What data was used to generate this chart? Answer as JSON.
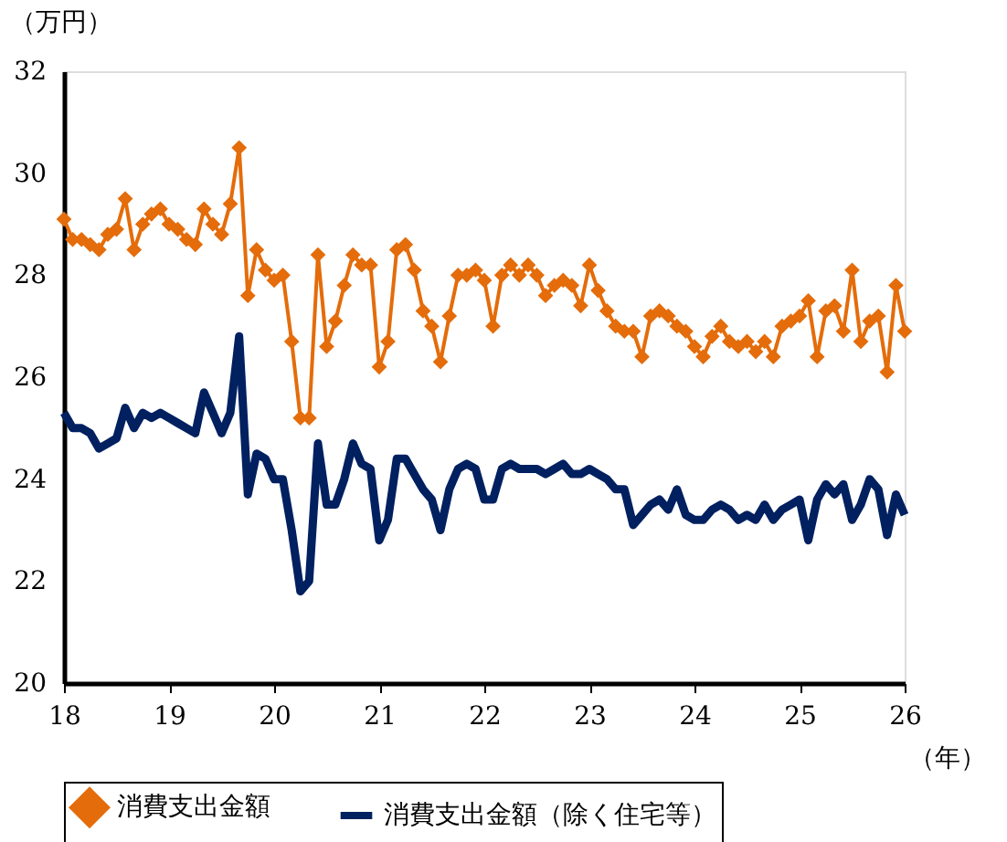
{
  "chart_data": {
    "type": "line",
    "xlabel": "（年）",
    "ylabel": "（万円）",
    "xlim": [
      18,
      26
    ],
    "xticks": [
      18,
      19,
      20,
      21,
      22,
      23,
      24,
      25,
      26
    ],
    "ylim": [
      20,
      32
    ],
    "yticks": [
      20,
      22,
      24,
      26,
      28,
      30,
      32
    ],
    "grid": false,
    "legend": "bottom",
    "x": [
      18,
      18.083,
      18.167,
      18.25,
      18.333,
      18.417,
      18.5,
      18.583,
      18.667,
      18.75,
      18.833,
      18.917,
      19,
      19.083,
      19.167,
      19.25,
      19.333,
      19.417,
      19.5,
      19.583,
      19.667,
      19.75,
      19.833,
      19.917,
      20,
      20.083,
      20.167,
      20.25,
      20.333,
      20.417,
      20.5,
      20.583,
      20.667,
      20.75,
      20.833,
      20.917,
      21,
      21.083,
      21.167,
      21.25,
      21.333,
      21.417,
      21.5,
      21.583,
      21.667,
      21.75,
      21.833,
      21.917,
      22,
      22.083,
      22.167,
      22.25,
      22.333,
      22.417,
      22.5,
      22.583,
      22.667,
      22.75,
      22.833,
      22.917,
      23,
      23.083,
      23.167,
      23.25,
      23.333,
      23.417,
      23.5,
      23.583,
      23.667,
      23.75,
      23.833,
      23.917,
      24,
      24.083,
      24.167,
      24.25,
      24.333,
      24.417,
      24.5,
      24.583,
      24.667,
      24.75,
      24.833,
      24.917,
      25,
      25.083,
      25.167,
      25.25,
      25.333,
      25.417,
      25.5,
      25.583,
      25.667,
      25.75,
      25.833,
      25.917,
      26
    ],
    "series": [
      {
        "name": "消費支出金額",
        "color": "#e46c0a",
        "marker": "diamond",
        "values": [
          29.1,
          28.7,
          28.7,
          28.6,
          28.5,
          28.8,
          28.9,
          29.5,
          28.5,
          29.0,
          29.2,
          29.3,
          29.0,
          28.9,
          28.7,
          28.6,
          29.3,
          29.0,
          28.8,
          29.4,
          30.5,
          27.6,
          28.5,
          28.1,
          27.9,
          28.0,
          26.7,
          25.2,
          25.2,
          28.4,
          26.6,
          27.1,
          27.8,
          28.4,
          28.2,
          28.2,
          26.2,
          26.7,
          28.5,
          28.6,
          28.1,
          27.3,
          27.0,
          26.3,
          27.2,
          28.0,
          28.0,
          28.1,
          27.9,
          27.0,
          28.0,
          28.2,
          28.0,
          28.2,
          28.0,
          27.6,
          27.8,
          27.9,
          27.8,
          27.4,
          28.2,
          27.7,
          27.3,
          27.0,
          26.9,
          26.9,
          26.4,
          27.2,
          27.3,
          27.2,
          27.0,
          26.9,
          26.6,
          26.4,
          26.8,
          27.0,
          26.7,
          26.6,
          26.7,
          26.5,
          26.7,
          26.4,
          27.0,
          27.1,
          27.2,
          27.5,
          26.4,
          27.3,
          27.4,
          26.9,
          28.1,
          26.7,
          27.1,
          27.2,
          26.1,
          27.8,
          26.9
        ]
      },
      {
        "name": "消費支出金額（除く住宅等）",
        "color": "#002060",
        "marker": "none",
        "values": [
          25.3,
          25.0,
          25.0,
          24.9,
          24.6,
          24.7,
          24.8,
          25.4,
          25.0,
          25.3,
          25.2,
          25.3,
          25.2,
          25.1,
          25.0,
          24.9,
          25.7,
          25.3,
          24.9,
          25.3,
          26.8,
          23.7,
          24.5,
          24.4,
          24.0,
          24.0,
          23.0,
          21.8,
          22.0,
          24.7,
          23.5,
          23.5,
          24.0,
          24.7,
          24.3,
          24.2,
          22.8,
          23.2,
          24.4,
          24.4,
          24.1,
          23.8,
          23.6,
          23.0,
          23.8,
          24.2,
          24.3,
          24.2,
          23.6,
          23.6,
          24.2,
          24.3,
          24.2,
          24.2,
          24.2,
          24.1,
          24.2,
          24.3,
          24.1,
          24.1,
          24.2,
          24.1,
          24.0,
          23.8,
          23.8,
          23.1,
          23.3,
          23.5,
          23.6,
          23.4,
          23.8,
          23.3,
          23.2,
          23.2,
          23.4,
          23.5,
          23.4,
          23.2,
          23.3,
          23.2,
          23.5,
          23.2,
          23.4,
          23.5,
          23.6,
          22.8,
          23.6,
          23.9,
          23.7,
          23.9,
          23.2,
          23.5,
          24.0,
          23.8,
          22.9,
          23.7,
          23.3
        ]
      }
    ]
  }
}
